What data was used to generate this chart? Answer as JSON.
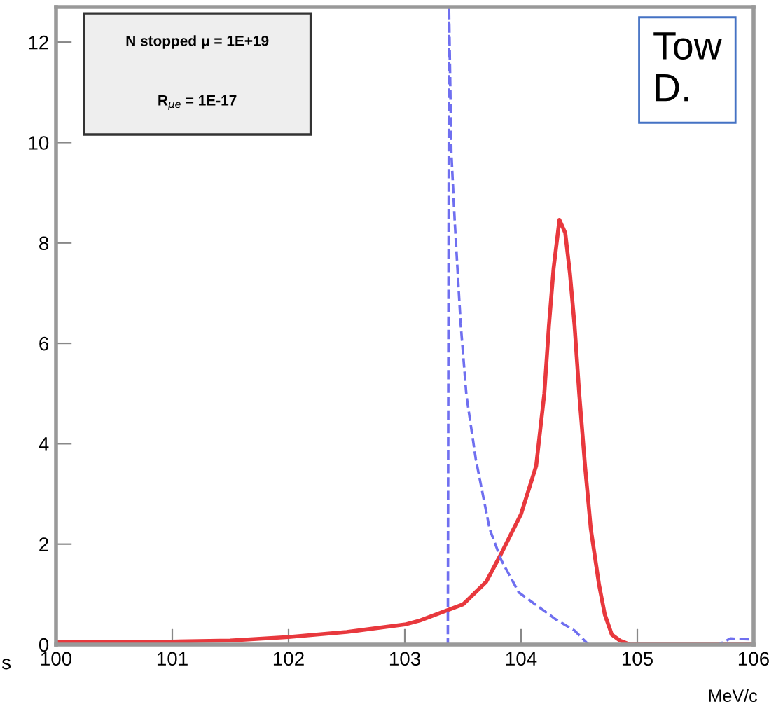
{
  "chart_data": {
    "type": "line",
    "xlabel": "MeV/c",
    "xlim": [
      100,
      106
    ],
    "ylim": [
      0,
      12.7
    ],
    "xticks": [
      100,
      101,
      102,
      103,
      104,
      105,
      106
    ],
    "yticks": [
      0,
      2,
      4,
      6,
      8,
      10,
      12
    ],
    "grid": false,
    "legend": false,
    "marker": "none",
    "series": [
      {
        "color": "#e8383d",
        "line_style": "solid",
        "x": [
          100,
          101,
          101.5,
          102,
          102.5,
          103,
          103.13,
          103.5,
          103.7,
          103.82,
          104.0,
          104.13,
          104.2,
          104.24,
          104.28,
          104.33,
          104.38,
          104.42,
          104.46,
          104.5,
          104.55,
          104.6,
          104.67,
          104.72,
          104.78,
          104.85,
          104.94,
          105.5,
          106
        ],
        "values": [
          0.05,
          0.06,
          0.08,
          0.15,
          0.25,
          0.4,
          0.48,
          0.8,
          1.25,
          1.77,
          2.6,
          3.56,
          5.0,
          6.36,
          7.5,
          8.46,
          8.2,
          7.4,
          6.36,
          5.0,
          3.56,
          2.3,
          1.2,
          0.6,
          0.2,
          0.08,
          0,
          0,
          0
        ]
      },
      {
        "color": "#6f6ff0",
        "line_style": "dashed",
        "x": [
          100,
          103.37,
          103.38,
          103.4,
          103.43,
          103.48,
          103.53,
          103.61,
          103.73,
          103.83,
          103.98,
          104.3,
          104.46,
          104.58,
          105.7,
          105.8,
          106
        ],
        "values": [
          0,
          0,
          12.7,
          9.8,
          8.4,
          6.4,
          4.96,
          3.7,
          2.3,
          1.68,
          1.04,
          0.5,
          0.28,
          0,
          0,
          0.12,
          0.1
        ]
      }
    ],
    "annotations": [
      "N stopped μ = 1E+19",
      "R$_{μe}$ = 1E-17",
      "Tow",
      "D.",
      "s"
    ]
  }
}
